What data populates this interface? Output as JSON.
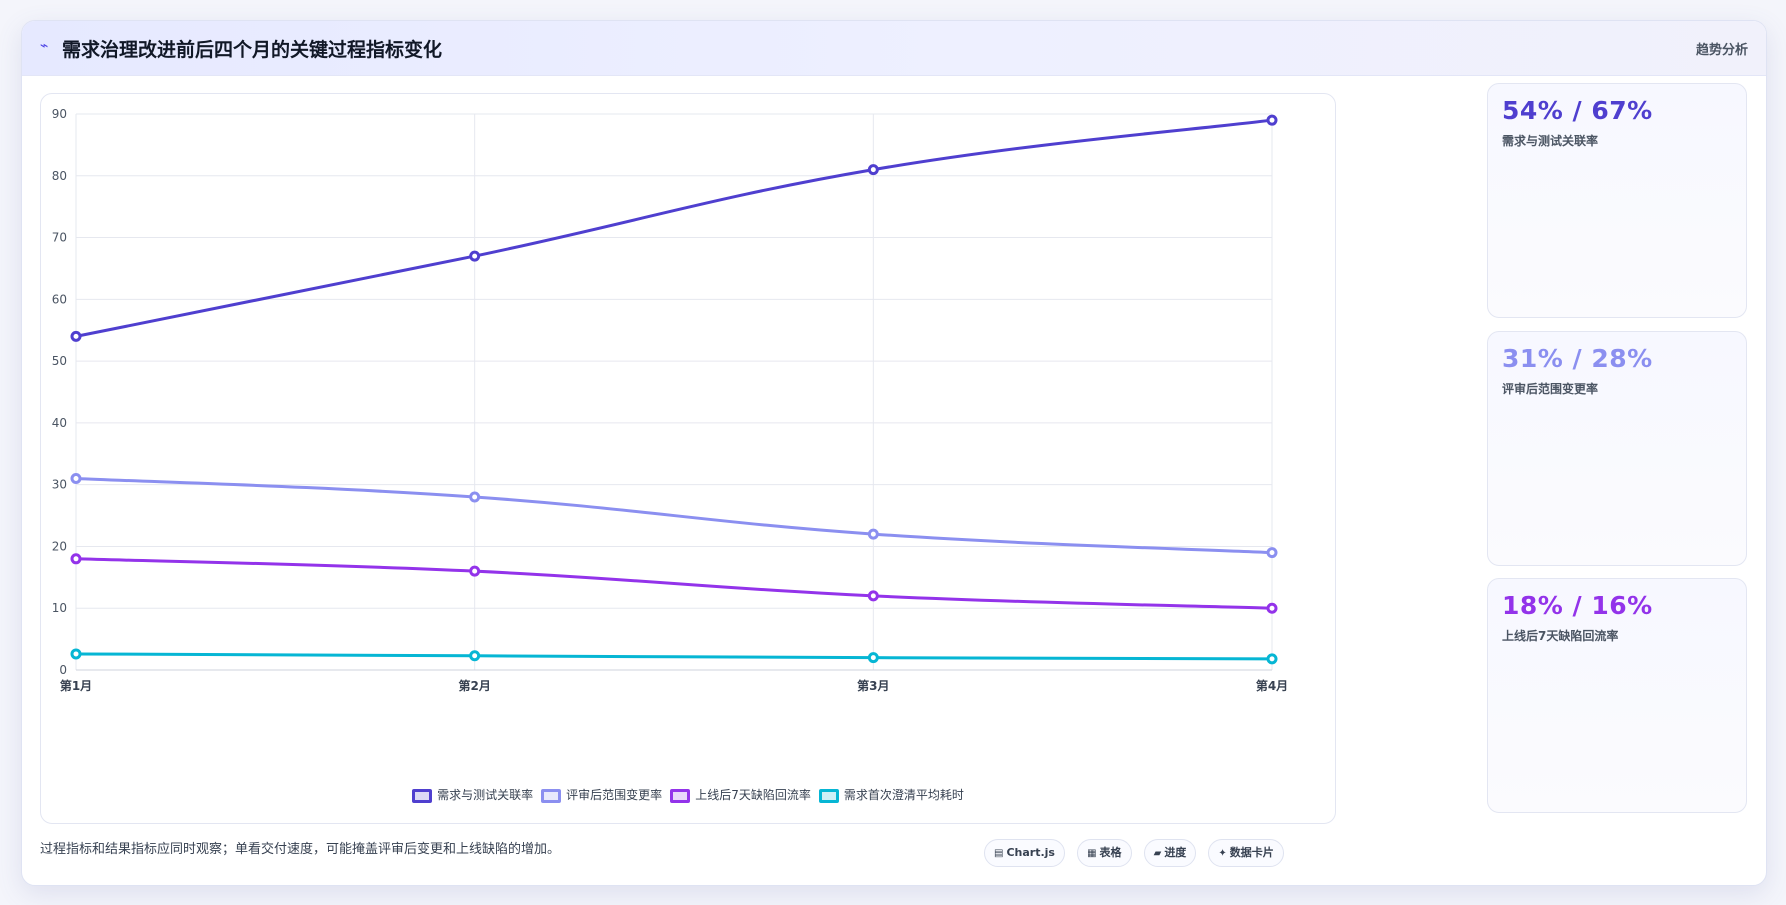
{
  "header": {
    "icon": "trend-icon",
    "icon_glyph": "⌁",
    "title": "需求治理改进前后四个月的关键过程指标变化",
    "right_label": "趋势分析"
  },
  "chart_data": {
    "type": "line",
    "title": "",
    "xlabel": "",
    "ylabel": "",
    "categories": [
      "第1月",
      "第2月",
      "第3月",
      "第4月"
    ],
    "ylim": [
      0,
      90
    ],
    "yticks": [
      0,
      10,
      20,
      30,
      40,
      50,
      60,
      70,
      80,
      90
    ],
    "grid": true,
    "legend_position": "bottom",
    "series": [
      {
        "name": "需求与测试关联率",
        "values": [
          54,
          67,
          81,
          89
        ],
        "color": "#4f3fcf"
      },
      {
        "name": "评审后范围变更率",
        "values": [
          31,
          28,
          22,
          19
        ],
        "color": "#8b8ff0"
      },
      {
        "name": "上线后7天缺陷回流率",
        "values": [
          18,
          16,
          12,
          10
        ],
        "color": "#9333ea"
      },
      {
        "name": "需求首次澄清平均耗时",
        "values": [
          2.6,
          2.3,
          2.0,
          1.8
        ],
        "color": "#06b6d4"
      }
    ]
  },
  "kpis": [
    {
      "value": "54% / 67%",
      "label": "需求与测试关联率",
      "color": "#4f3fcf"
    },
    {
      "value": "31% / 28%",
      "label": "评审后范围变更率",
      "color": "#8b8ff0"
    },
    {
      "value": "18% / 16%",
      "label": "上线后7天缺陷回流率",
      "color": "#9333ea"
    }
  ],
  "footer": {
    "note": "过程指标和结果指标应同时观察；单看交付速度，可能掩盖评审后变更和上线缺陷的增加。",
    "chips": [
      {
        "icon": "chart-icon",
        "glyph": "▤",
        "label": "Chart.js"
      },
      {
        "icon": "table-icon",
        "glyph": "▦",
        "label": "表格"
      },
      {
        "icon": "progress-icon",
        "glyph": "▰",
        "label": "进度"
      },
      {
        "icon": "card-icon",
        "glyph": "✦",
        "label": "数据卡片"
      }
    ]
  }
}
